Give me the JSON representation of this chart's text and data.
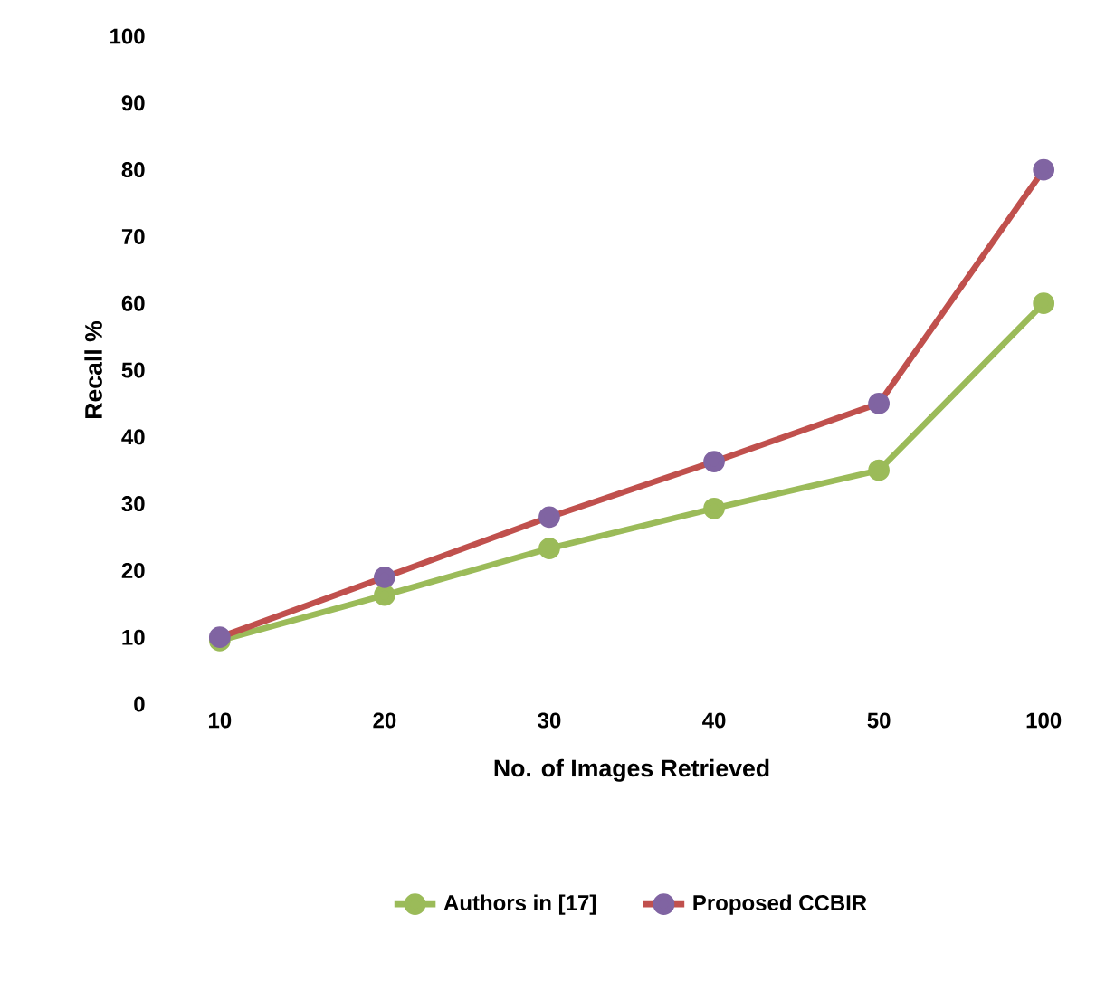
{
  "chart_data": {
    "type": "line",
    "xlabel": "No. of Images Retrieved",
    "ylabel": "Recall %",
    "categories": [
      "10",
      "20",
      "30",
      "40",
      "50",
      "100"
    ],
    "ylim": [
      0,
      100
    ],
    "yticks": [
      0,
      10,
      20,
      30,
      40,
      50,
      60,
      70,
      80,
      90,
      100
    ],
    "series": [
      {
        "name": "Authors in [17]",
        "color": "#9bbb59",
        "colors": [
          "#9bbb59",
          "#9bbb59",
          "#9bbb59",
          "#9bbb59",
          "#9bbb59",
          "#9bbb59"
        ],
        "values": [
          9.5,
          16.3,
          23.3,
          29.3,
          35,
          60
        ]
      },
      {
        "name": "Proposed CCBIR",
        "color": "#c0504d",
        "colors": [
          "#8064a2",
          "#8064a2",
          "#8064a2",
          "#8064a2",
          "#8064a2",
          "#8064a2"
        ],
        "values": [
          10,
          19,
          28,
          36.3,
          45,
          80
        ]
      }
    ],
    "legend": "bottom",
    "marker": "circle"
  }
}
